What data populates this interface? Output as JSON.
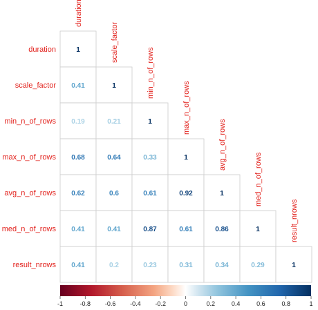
{
  "chart_data": {
    "type": "heatmap",
    "subtype": "lower-triangular correlation matrix",
    "variables": [
      "duration",
      "scale_factor",
      "min_n_of_rows",
      "max_n_of_rows",
      "avg_n_of_rows",
      "med_n_of_rows",
      "result_nrows"
    ],
    "matrix": [
      [
        1,
        null,
        null,
        null,
        null,
        null,
        null
      ],
      [
        0.41,
        1,
        null,
        null,
        null,
        null,
        null
      ],
      [
        0.19,
        0.21,
        1,
        null,
        null,
        null,
        null
      ],
      [
        0.68,
        0.64,
        0.33,
        1,
        null,
        null,
        null
      ],
      [
        0.62,
        0.6,
        0.61,
        0.92,
        1,
        null,
        null
      ],
      [
        0.41,
        0.41,
        0.87,
        0.61,
        0.86,
        1,
        null
      ],
      [
        0.41,
        0.2,
        0.23,
        0.31,
        0.34,
        0.29,
        1
      ]
    ],
    "cell_labels": [
      [
        "1",
        "",
        "",
        "",
        "",
        "",
        ""
      ],
      [
        "0.41",
        "1",
        "",
        "",
        "",
        "",
        ""
      ],
      [
        "0.19",
        "0.21",
        "1",
        "",
        "",
        "",
        ""
      ],
      [
        "0.68",
        "0.64",
        "0.33",
        "1",
        "",
        "",
        ""
      ],
      [
        "0.62",
        "0.6",
        "0.61",
        "0.92",
        "1",
        "",
        ""
      ],
      [
        "0.41",
        "0.41",
        "0.87",
        "0.61",
        "0.86",
        "1",
        ""
      ],
      [
        "0.41",
        "0.2",
        "0.23",
        "0.31",
        "0.34",
        "0.29",
        "1"
      ]
    ],
    "colorbar": {
      "range": [
        -1,
        1
      ],
      "ticks": [
        -1,
        -0.8,
        -0.6,
        -0.4,
        -0.2,
        0,
        0.2,
        0.4,
        0.6,
        0.8,
        1
      ],
      "tick_labels": [
        "-1",
        "-0.8",
        "-0.6",
        "-0.4",
        "-0.2",
        "0",
        "0.2",
        "0.4",
        "0.6",
        "0.8",
        "1"
      ],
      "low_color": "#67001f",
      "mid_color": "#ffffff",
      "high_color": "#053061"
    },
    "label_color": "#e2211c",
    "grid_color": "#cccccc",
    "title": ""
  }
}
